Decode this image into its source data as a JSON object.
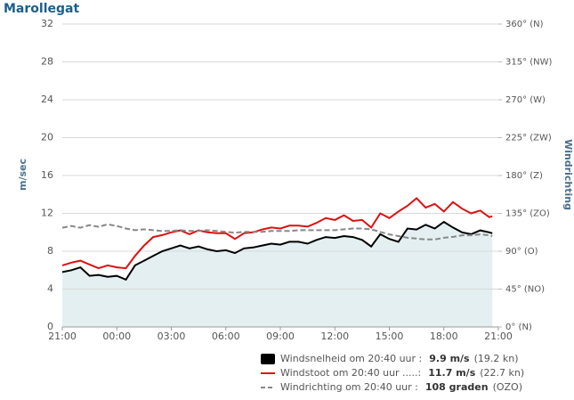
{
  "chart_data": {
    "type": "line",
    "title": "Marollegat",
    "ylabel": "m/sec",
    "y2label": "Windrichting",
    "xlim": [
      0,
      24
    ],
    "xticks": [
      {
        "value": 0,
        "label": "21:00"
      },
      {
        "value": 3,
        "label": "00:00"
      },
      {
        "value": 6,
        "label": "03:00"
      },
      {
        "value": 9,
        "label": "06:00"
      },
      {
        "value": 12,
        "label": "09:00"
      },
      {
        "value": 15,
        "label": "12:00"
      },
      {
        "value": 18,
        "label": "15:00"
      },
      {
        "value": 21,
        "label": "18:00"
      },
      {
        "value": 24,
        "label": "21:00"
      }
    ],
    "ylim": [
      0,
      32
    ],
    "yticks": [
      0,
      4,
      8,
      12,
      16,
      20,
      24,
      28,
      32
    ],
    "y2lim": [
      0,
      360
    ],
    "y2ticks": [
      {
        "value": 0,
        "label": "0° (N)"
      },
      {
        "value": 45,
        "label": "45° (NO)"
      },
      {
        "value": 90,
        "label": "90° (O)"
      },
      {
        "value": 135,
        "label": "135° (ZO)"
      },
      {
        "value": 180,
        "label": "180° (Z)"
      },
      {
        "value": 225,
        "label": "225° (ZW)"
      },
      {
        "value": 270,
        "label": "270° (W)"
      },
      {
        "value": 315,
        "label": "315° (NW)"
      },
      {
        "value": 360,
        "label": "360° (N)"
      }
    ],
    "grid": true,
    "x": [
      0,
      0.5,
      1,
      1.5,
      2,
      2.5,
      3,
      3.5,
      4,
      4.5,
      5,
      5.5,
      6,
      6.5,
      7,
      7.5,
      8,
      8.5,
      9,
      9.5,
      10,
      10.5,
      11,
      11.5,
      12,
      12.5,
      13,
      13.5,
      14,
      14.5,
      15,
      15.5,
      16,
      16.5,
      17,
      17.5,
      18,
      18.5,
      19,
      19.5,
      20,
      20.5,
      21,
      21.5,
      22,
      22.5,
      23,
      23.5,
      23.667
    ],
    "series": [
      {
        "name": "Windsnelheid om 20:40 uur :",
        "current": "9.9 m/s",
        "extra": "(19.2 kn)",
        "color": "#000000",
        "area": true,
        "area_color": "#e4eff2",
        "values": [
          5.8,
          6.0,
          6.3,
          5.4,
          5.5,
          5.3,
          5.4,
          5.0,
          6.5,
          7.0,
          7.5,
          8.0,
          8.3,
          8.6,
          8.3,
          8.5,
          8.2,
          8.0,
          8.1,
          7.8,
          8.3,
          8.4,
          8.6,
          8.8,
          8.7,
          9.0,
          9.0,
          8.8,
          9.2,
          9.5,
          9.4,
          9.6,
          9.5,
          9.2,
          8.5,
          9.8,
          9.3,
          9.0,
          10.4,
          10.3,
          10.8,
          10.4,
          11.1,
          10.5,
          10.0,
          9.8,
          10.2,
          10.0,
          9.9
        ]
      },
      {
        "name": "Windstoot om 20:40 uur .....:",
        "current": "11.7 m/s",
        "extra": "(22.7 kn)",
        "color": "#dd1111",
        "values": [
          6.5,
          6.8,
          7.0,
          6.6,
          6.2,
          6.5,
          6.3,
          6.2,
          7.5,
          8.6,
          9.5,
          9.7,
          10.0,
          10.2,
          9.8,
          10.2,
          10.0,
          9.9,
          9.9,
          9.3,
          9.9,
          10.0,
          10.3,
          10.5,
          10.4,
          10.7,
          10.7,
          10.6,
          11.0,
          11.5,
          11.3,
          11.8,
          11.2,
          11.3,
          10.5,
          12.0,
          11.5,
          12.2,
          12.8,
          13.6,
          12.6,
          13.0,
          12.2,
          13.2,
          12.5,
          12.0,
          12.3,
          11.6,
          11.7
        ]
      },
      {
        "name": "Windrichting om 20:40 uur :",
        "current": "108 graden",
        "extra": "(OZO)",
        "color": "#888888",
        "dashed": true,
        "axis": "y2",
        "values": [
          118,
          120,
          118,
          121,
          119,
          122,
          120,
          117,
          115,
          116,
          115,
          114,
          114,
          115,
          114,
          114,
          115,
          114,
          113,
          112,
          113,
          113,
          113,
          114,
          114,
          114,
          115,
          115,
          115,
          115,
          115,
          116,
          117,
          117,
          116,
          113,
          110,
          108,
          106,
          105,
          104,
          104,
          106,
          107,
          109,
          109,
          110,
          109,
          108
        ]
      }
    ]
  }
}
